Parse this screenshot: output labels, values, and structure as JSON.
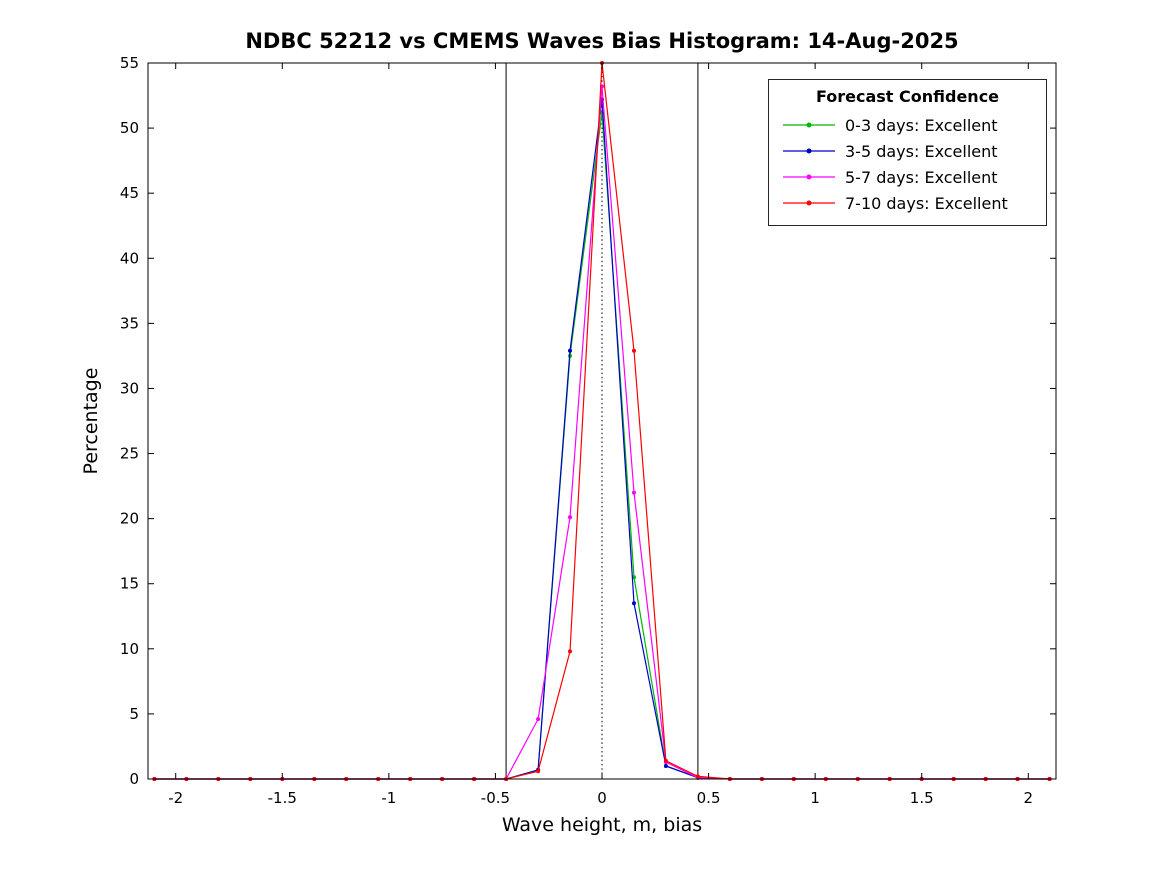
{
  "chart_data": {
    "type": "line",
    "title": "NDBC 52212 vs CMEMS Waves Bias Histogram: 14-Aug-2025",
    "xlabel": "Wave height, m, bias",
    "ylabel": "Percentage",
    "xlim": [
      -2.13,
      2.13
    ],
    "ylim": [
      0,
      55
    ],
    "grid": false,
    "legend_title": "Forecast Confidence",
    "legend_position": "top-right",
    "xtick_values": [
      -2,
      -1.5,
      -1,
      -0.5,
      0,
      0.5,
      1,
      1.5,
      2
    ],
    "xtick_labels": [
      "-2",
      "-1.5",
      "-1",
      "-0.5",
      "0",
      "0.5",
      "1",
      "1.5",
      "2"
    ],
    "ytick_values": [
      0,
      5,
      10,
      15,
      20,
      25,
      30,
      35,
      40,
      45,
      50,
      55
    ],
    "reference_lines": [
      {
        "x": -0.45,
        "style": "solid",
        "color": "#000000"
      },
      {
        "x": 0,
        "style": "dotted",
        "color": "#000000"
      },
      {
        "x": 0.45,
        "style": "solid",
        "color": "#000000"
      }
    ],
    "x": [
      -2.1,
      -1.95,
      -1.8,
      -1.65,
      -1.5,
      -1.35,
      -1.2,
      -1.05,
      -0.9,
      -0.75,
      -0.6,
      -0.45,
      -0.3,
      -0.15,
      0,
      0.15,
      0.3,
      0.45,
      0.6,
      0.75,
      0.9,
      1.05,
      1.2,
      1.35,
      1.5,
      1.65,
      1.8,
      1.95,
      2.1
    ],
    "series": [
      {
        "name": "0-3 days: Excellent",
        "color": "#00b800",
        "values": [
          0,
          0,
          0,
          0,
          0,
          0,
          0,
          0,
          0,
          0,
          0,
          0,
          0.7,
          32.5,
          51.2,
          15.5,
          1.0,
          0.1,
          0,
          0,
          0,
          0,
          0,
          0,
          0,
          0,
          0,
          0,
          0
        ]
      },
      {
        "name": "3-5 days: Excellent",
        "color": "#0000cc",
        "values": [
          0,
          0,
          0,
          0,
          0,
          0,
          0,
          0,
          0,
          0,
          0,
          0,
          0.7,
          32.9,
          52.2,
          13.5,
          1.0,
          0.1,
          0,
          0,
          0,
          0,
          0,
          0,
          0,
          0,
          0,
          0,
          0
        ]
      },
      {
        "name": "5-7 days: Excellent",
        "color": "#ff00ff",
        "values": [
          0,
          0,
          0,
          0,
          0,
          0,
          0,
          0,
          0,
          0,
          0,
          0,
          4.6,
          20.1,
          53.2,
          22.0,
          1.3,
          0.1,
          0,
          0,
          0,
          0,
          0,
          0,
          0,
          0,
          0,
          0,
          0
        ]
      },
      {
        "name": "7-10 days: Excellent",
        "color": "#ff0000",
        "values": [
          0,
          0,
          0,
          0,
          0,
          0,
          0,
          0,
          0,
          0,
          0,
          0,
          0.6,
          9.8,
          55.0,
          32.9,
          1.4,
          0.2,
          0,
          0,
          0,
          0,
          0,
          0,
          0,
          0,
          0,
          0,
          0
        ]
      }
    ]
  }
}
